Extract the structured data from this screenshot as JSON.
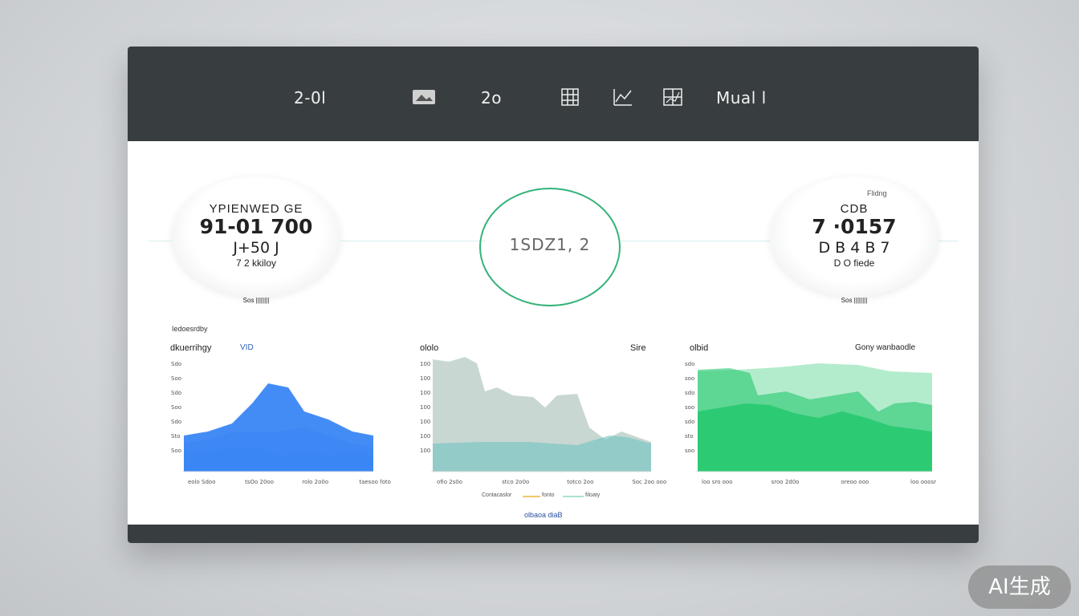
{
  "nav": {
    "items": [
      "2-0l",
      "2o",
      "Mual l"
    ],
    "icons": [
      "image-icon",
      "table-icon",
      "chart-icon",
      "grid-icon"
    ]
  },
  "kpis": [
    {
      "label": "YPIENWED GE",
      "value": "91-01 700",
      "sub": "J+50 J",
      "note": "7 2 kkiloy",
      "foot": "Sos ||||||||"
    },
    {
      "label": "CDB",
      "value": "7 ·0157",
      "sub": "D B 4 B 7",
      "note": "D O fiede",
      "foot": "Sos ||||||||",
      "tag": "Flidng"
    }
  ],
  "center_ring": {
    "text": "1SDZ1, 2"
  },
  "section_label": "Iedoesrdby",
  "charts": [
    {
      "title": "dkuerrihgy",
      "badge": "VID",
      "yticks": [
        "Sdo",
        "Soo",
        "Sdo",
        "Soo",
        "Sdo",
        "Sto",
        "Soo"
      ],
      "xticks": [
        "eolo Sdoo",
        "tsOo 20oo",
        "rolo 2o0o",
        "taesoo foto"
      ],
      "color": "#3a86f4"
    },
    {
      "title": "ololo",
      "badge": "Sire",
      "yticks": [
        "100",
        "100",
        "100",
        "100",
        "100",
        "100",
        "100"
      ],
      "xticks": [
        "ofio 2s0o",
        "stco 2o0o",
        "totco 2oo",
        "Soc 2oo ooo"
      ],
      "color": "#64b6b3"
    },
    {
      "title": "olbid",
      "badge": "Gony wanbaodle",
      "yticks": [
        "sdo",
        "soo",
        "sdo",
        "soo",
        "sdo",
        "sto",
        "soo"
      ],
      "xticks": [
        "loo sro ooo",
        "sroo 2d0o",
        "oreoo ooo",
        "loo ooosr"
      ],
      "color": "#25c86e"
    }
  ],
  "legend": {
    "items": [
      "Contacaslor",
      "fonto",
      "filoaty"
    ]
  },
  "footer_link": "olbaoa diaB",
  "watermark": "AI生成",
  "colors": {
    "topbar": "#383d40",
    "ring": "#35b37a",
    "blue": "#3a86f4",
    "teal": "#64b6b3",
    "green": "#25c86e"
  }
}
